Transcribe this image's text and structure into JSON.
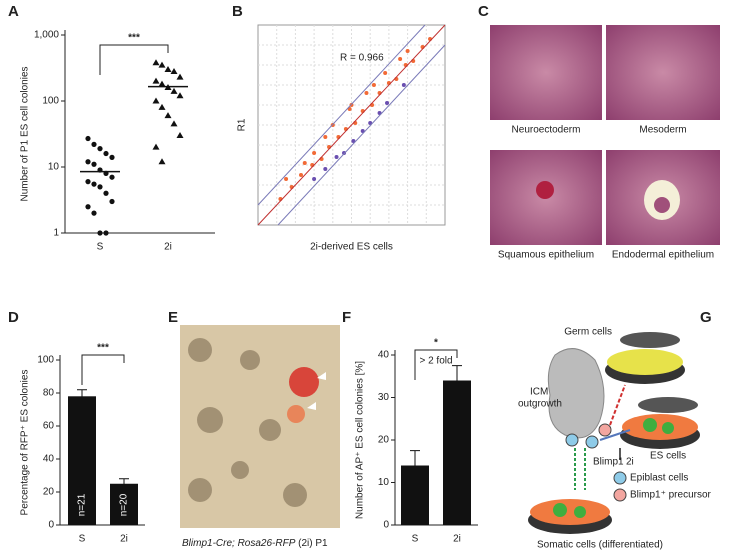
{
  "panels": [
    "A",
    "B",
    "C",
    "D",
    "E",
    "F",
    "G"
  ],
  "chart_data": [
    {
      "type": "strip",
      "ylabel": "Number of P1 ES cell colonies",
      "categories": [
        "S",
        "2i"
      ],
      "values": [
        [
          27,
          22,
          19,
          16,
          14,
          12,
          11,
          9,
          8,
          7,
          6,
          5.5,
          5,
          4,
          3,
          2.5,
          2,
          1,
          1
        ],
        [
          380,
          350,
          300,
          280,
          230,
          200,
          180,
          160,
          140,
          120,
          100,
          80,
          60,
          45,
          30,
          20,
          12
        ]
      ],
      "means": [
        8.5,
        165
      ],
      "log_scale": true,
      "ylim": [
        1,
        1000
      ],
      "yticks": [
        1,
        10,
        100,
        {
          "value": 1000,
          "label": "1,000"
        }
      ],
      "annotation": "***",
      "color": "#111111"
    },
    {
      "type": "scatter",
      "xlabel": "2i-derived ES cells",
      "ylabel": "R1",
      "annotation": "R = 0.966",
      "xlim": [
        0,
        10
      ],
      "ylim": [
        0,
        10
      ],
      "grid": true,
      "series": [
        {
          "color": "#f26a36",
          "x": [
            1.2,
            1.8,
            2.3,
            2.9,
            3.4,
            3.8,
            4.3,
            4.7,
            5.2,
            5.6,
            6.1,
            6.5,
            7.0,
            7.4,
            7.9,
            8.3,
            8.8,
            9.2,
            2.5,
            3.6,
            4.9,
            6.2,
            7.6,
            3.0,
            5.0,
            6.8,
            8.0,
            1.5,
            4.0,
            5.8
          ],
          "y": [
            1.3,
            1.9,
            2.5,
            3.0,
            3.3,
            3.9,
            4.4,
            4.8,
            5.1,
            5.7,
            6.0,
            6.6,
            7.1,
            7.3,
            8.0,
            8.2,
            8.9,
            9.3,
            3.1,
            4.4,
            5.8,
            7.0,
            8.3,
            3.6,
            6.0,
            7.6,
            8.7,
            2.3,
            5.0,
            6.6
          ]
        },
        {
          "color": "#6a4fb0",
          "x": [
            3.0,
            4.2,
            5.1,
            6.0,
            6.9,
            7.8,
            4.6,
            5.6,
            3.6,
            6.5
          ],
          "y": [
            2.3,
            3.4,
            4.2,
            5.1,
            6.1,
            7.0,
            3.6,
            4.7,
            2.8,
            5.6
          ]
        }
      ]
    },
    {
      "type": "bar",
      "ylabel": "Percentage of RFP⁺ ES colonies",
      "categories": [
        "S",
        "2i"
      ],
      "values": [
        78,
        25
      ],
      "errors": [
        4,
        3
      ],
      "inner_labels": [
        "n=21",
        "n=20"
      ],
      "ylim": [
        0,
        100
      ],
      "yticks": [
        0,
        20,
        40,
        60,
        80,
        100
      ],
      "annotation": "***",
      "color": "#111111"
    },
    {
      "type": "bar",
      "ylabel": "Number of AP⁺ ES  cell colonies [%]",
      "categories": [
        "S",
        "2i"
      ],
      "values": [
        14,
        34
      ],
      "errors": [
        3.5,
        3.5
      ],
      "ylim": [
        0,
        40
      ],
      "yticks": [
        0,
        10,
        20,
        30,
        40
      ],
      "annotation": "*",
      "annotation2": "> 2 fold",
      "color": "#111111"
    }
  ],
  "panel_c": {
    "captions": [
      "Neuroectoderm",
      "Mesoderm",
      "Squamous epithelium",
      "Endodermal epithelium"
    ]
  },
  "panel_e": {
    "caption_italic": "Blimp1-Cre; Rosa26-RFP",
    "caption_rest": " (2i) P1"
  },
  "panel_g": {
    "germ": "Germ cells",
    "icm": "ICM",
    "outgrowth": "outgrowth",
    "es": "ES cells",
    "twoi": "2i",
    "blimp": "Blimp1",
    "epiblast": "Epiblast cells",
    "precursor": "Blimp1⁺ precursor",
    "somatic": "Somatic cells (differentiated)"
  }
}
